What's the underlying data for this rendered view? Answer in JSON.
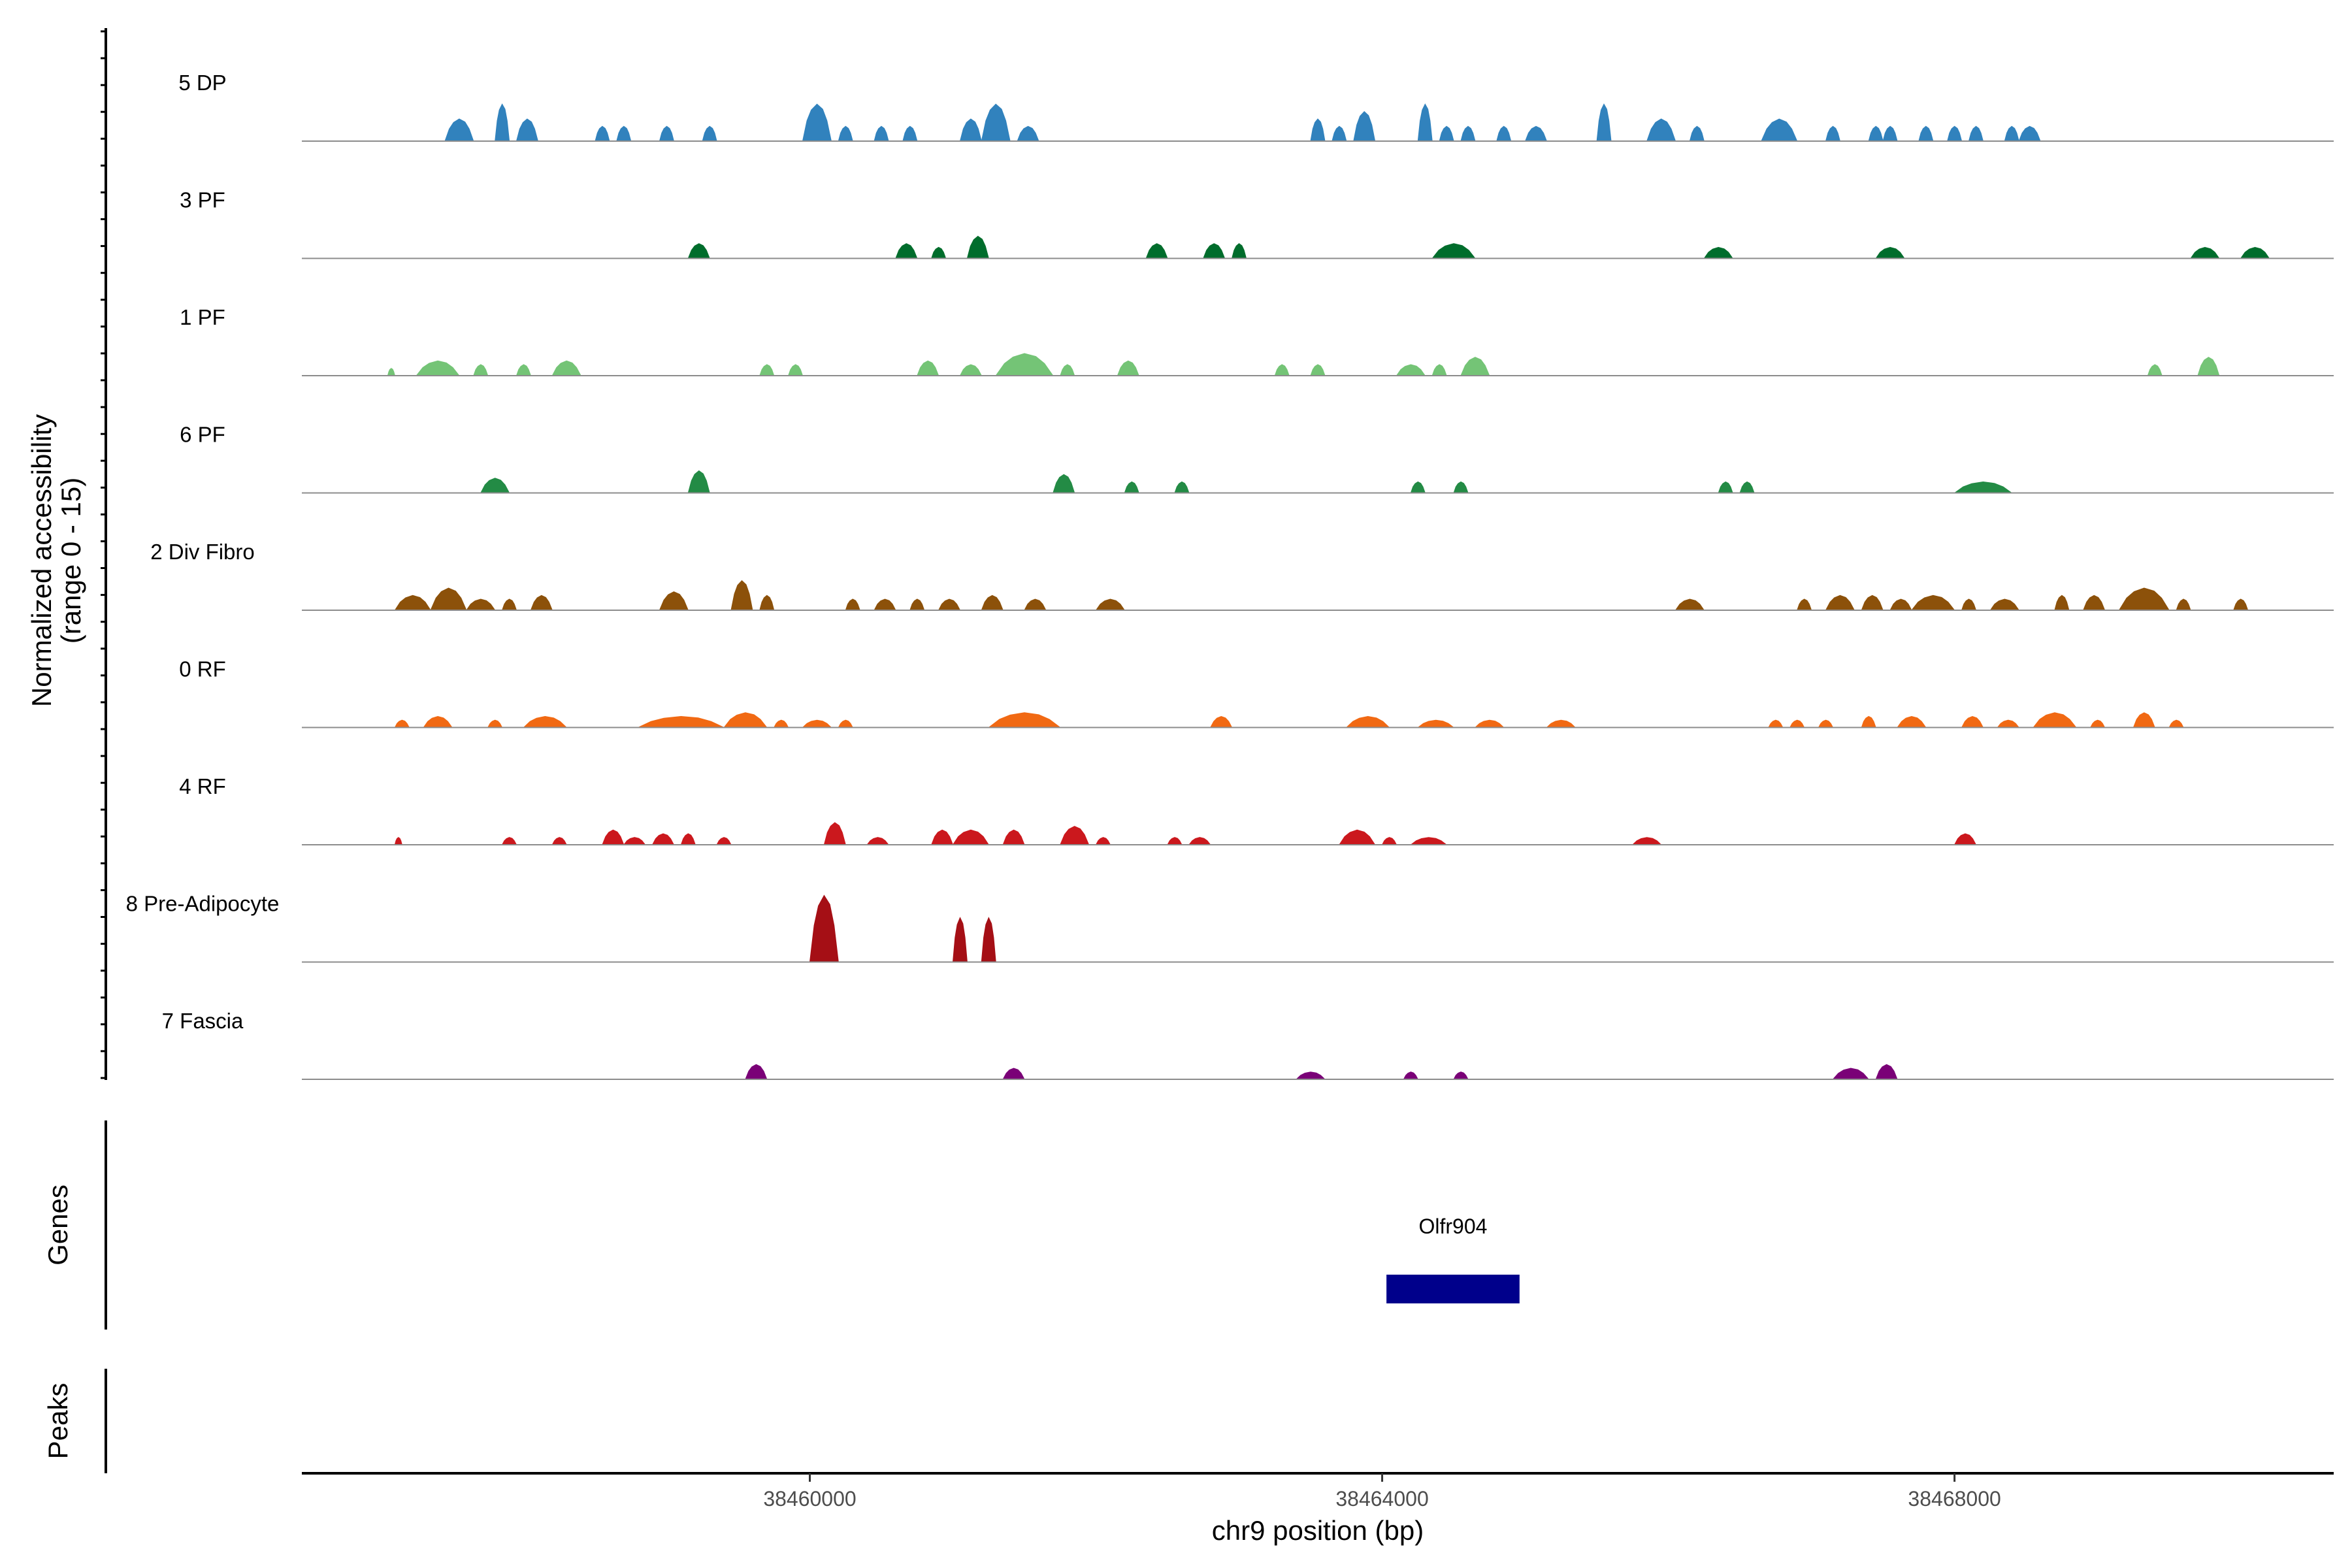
{
  "chart_data": {
    "type": "area",
    "ylabel_line1": "Normalized accessibility",
    "ylabel_line2": "(range 0 - 15)",
    "xlabel": "chr9 position (bp)",
    "xlim": [
      38456450,
      38470650
    ],
    "ylim": [
      0,
      15
    ],
    "x_ticks": [
      38460000,
      38464000,
      38468000
    ],
    "x_tick_labels": [
      "38460000",
      "38464000",
      "38468000"
    ],
    "genes_panel_label": "Genes",
    "peaks_panel_label": "Peaks",
    "genes": [
      {
        "name": "Olfr904",
        "start": 38464030,
        "end": 38464960,
        "color": "#00008B"
      }
    ],
    "peaks": [],
    "series": [
      {
        "name": "5 DP",
        "color": "#3182BD",
        "peaks": [
          [
            38457450,
            38457650,
            3
          ],
          [
            38457800,
            38457900,
            5
          ],
          [
            38457950,
            38458100,
            3
          ],
          [
            38458500,
            38458600,
            2
          ],
          [
            38458650,
            38458750,
            2
          ],
          [
            38458950,
            38459050,
            2
          ],
          [
            38459250,
            38459350,
            2
          ],
          [
            38459950,
            38460150,
            5
          ],
          [
            38460200,
            38460300,
            2
          ],
          [
            38460450,
            38460550,
            2
          ],
          [
            38460650,
            38460750,
            2
          ],
          [
            38461050,
            38461200,
            3
          ],
          [
            38461200,
            38461400,
            5
          ],
          [
            38461450,
            38461600,
            2
          ],
          [
            38463500,
            38463600,
            3
          ],
          [
            38463650,
            38463750,
            2
          ],
          [
            38463800,
            38463950,
            4
          ],
          [
            38464250,
            38464350,
            5
          ],
          [
            38464400,
            38464500,
            2
          ],
          [
            38464550,
            38464650,
            2
          ],
          [
            38464800,
            38464900,
            2
          ],
          [
            38465000,
            38465150,
            2
          ],
          [
            38465500,
            38465600,
            5
          ],
          [
            38465850,
            38466050,
            3
          ],
          [
            38466150,
            38466250,
            2
          ],
          [
            38466650,
            38466900,
            3
          ],
          [
            38467100,
            38467200,
            2
          ],
          [
            38467400,
            38467500,
            2
          ],
          [
            38467500,
            38467600,
            2
          ],
          [
            38467750,
            38467850,
            2
          ],
          [
            38467950,
            38468050,
            2
          ],
          [
            38468100,
            38468200,
            2
          ],
          [
            38468350,
            38468450,
            2
          ],
          [
            38468450,
            38468600,
            2
          ]
        ]
      },
      {
        "name": "3 PF",
        "color": "#006D2C",
        "peaks": [
          [
            38459150,
            38459300,
            2
          ],
          [
            38460600,
            38460750,
            2
          ],
          [
            38460850,
            38460950,
            1.5
          ],
          [
            38461100,
            38461250,
            3
          ],
          [
            38462350,
            38462500,
            2
          ],
          [
            38462750,
            38462900,
            2
          ],
          [
            38462950,
            38463050,
            2
          ],
          [
            38464350,
            38464650,
            2
          ],
          [
            38466250,
            38466450,
            1.5
          ],
          [
            38467450,
            38467650,
            1.5
          ],
          [
            38469650,
            38469850,
            1.5
          ],
          [
            38470000,
            38470200,
            1.5
          ]
        ]
      },
      {
        "name": "1 PF",
        "color": "#74C476",
        "peaks": [
          [
            38457050,
            38457100,
            1
          ],
          [
            38457250,
            38457550,
            2
          ],
          [
            38457650,
            38457750,
            1.5
          ],
          [
            38457950,
            38458050,
            1.5
          ],
          [
            38458200,
            38458400,
            2
          ],
          [
            38459650,
            38459750,
            1.5
          ],
          [
            38459850,
            38459950,
            1.5
          ],
          [
            38460750,
            38460900,
            2
          ],
          [
            38461050,
            38461200,
            1.5
          ],
          [
            38461300,
            38461700,
            3
          ],
          [
            38461750,
            38461850,
            1.5
          ],
          [
            38462150,
            38462300,
            2
          ],
          [
            38463250,
            38463350,
            1.5
          ],
          [
            38463500,
            38463600,
            1.5
          ],
          [
            38464100,
            38464300,
            1.5
          ],
          [
            38464350,
            38464450,
            1.5
          ],
          [
            38464550,
            38464750,
            2.5
          ],
          [
            38469350,
            38469450,
            1.5
          ],
          [
            38469700,
            38469850,
            2.5
          ]
        ]
      },
      {
        "name": "6 PF",
        "color": "#238B45",
        "peaks": [
          [
            38457700,
            38457900,
            2
          ],
          [
            38459150,
            38459300,
            3
          ],
          [
            38461700,
            38461850,
            2.5
          ],
          [
            38462200,
            38462300,
            1.5
          ],
          [
            38462550,
            38462650,
            1.5
          ],
          [
            38464200,
            38464300,
            1.5
          ],
          [
            38464500,
            38464600,
            1.5
          ],
          [
            38466350,
            38466450,
            1.5
          ],
          [
            38466500,
            38466600,
            1.5
          ],
          [
            38468000,
            38468400,
            1.5
          ]
        ]
      },
      {
        "name": "2 Div Fibro",
        "color": "#8C510A",
        "peaks": [
          [
            38457100,
            38457350,
            2
          ],
          [
            38457350,
            38457600,
            3
          ],
          [
            38457600,
            38457800,
            1.5
          ],
          [
            38457850,
            38457950,
            1.5
          ],
          [
            38458050,
            38458200,
            2
          ],
          [
            38458950,
            38459150,
            2.5
          ],
          [
            38459450,
            38459600,
            4
          ],
          [
            38459650,
            38459750,
            2
          ],
          [
            38460250,
            38460350,
            1.5
          ],
          [
            38460450,
            38460600,
            1.5
          ],
          [
            38460700,
            38460800,
            1.5
          ],
          [
            38460900,
            38461050,
            1.5
          ],
          [
            38461200,
            38461350,
            2
          ],
          [
            38461500,
            38461650,
            1.5
          ],
          [
            38462000,
            38462200,
            1.5
          ],
          [
            38466050,
            38466250,
            1.5
          ],
          [
            38466900,
            38467000,
            1.5
          ],
          [
            38467100,
            38467300,
            2
          ],
          [
            38467350,
            38467500,
            2
          ],
          [
            38467550,
            38467700,
            1.5
          ],
          [
            38467700,
            38468000,
            2
          ],
          [
            38468050,
            38468150,
            1.5
          ],
          [
            38468250,
            38468450,
            1.5
          ],
          [
            38468700,
            38468800,
            2
          ],
          [
            38468900,
            38469050,
            2
          ],
          [
            38469150,
            38469500,
            3
          ],
          [
            38469550,
            38469650,
            1.5
          ],
          [
            38469950,
            38470050,
            1.5
          ]
        ]
      },
      {
        "name": "0 RF",
        "color": "#F16913",
        "peaks": [
          [
            38457100,
            38457200,
            1
          ],
          [
            38457300,
            38457500,
            1.5
          ],
          [
            38457750,
            38457850,
            1
          ],
          [
            38458000,
            38458300,
            1.5
          ],
          [
            38458800,
            38459400,
            1.5
          ],
          [
            38459400,
            38459700,
            2
          ],
          [
            38459750,
            38459850,
            1
          ],
          [
            38459950,
            38460150,
            1
          ],
          [
            38460200,
            38460300,
            1
          ],
          [
            38461250,
            38461750,
            2
          ],
          [
            38462800,
            38462950,
            1.5
          ],
          [
            38463750,
            38464050,
            1.5
          ],
          [
            38464250,
            38464500,
            1
          ],
          [
            38464650,
            38464850,
            1
          ],
          [
            38465150,
            38465350,
            1
          ],
          [
            38466700,
            38466800,
            1
          ],
          [
            38466850,
            38466950,
            1
          ],
          [
            38467050,
            38467150,
            1
          ],
          [
            38467350,
            38467450,
            1.5
          ],
          [
            38467600,
            38467800,
            1.5
          ],
          [
            38468050,
            38468200,
            1.5
          ],
          [
            38468300,
            38468450,
            1
          ],
          [
            38468550,
            38468850,
            2
          ],
          [
            38468950,
            38469050,
            1
          ],
          [
            38469250,
            38469400,
            2
          ],
          [
            38469500,
            38469600,
            1
          ]
        ]
      },
      {
        "name": "4 RF",
        "color": "#CB181D",
        "peaks": [
          [
            38457100,
            38457150,
            1
          ],
          [
            38457850,
            38457950,
            1
          ],
          [
            38458200,
            38458300,
            1
          ],
          [
            38458550,
            38458700,
            2
          ],
          [
            38458700,
            38458850,
            1
          ],
          [
            38458900,
            38459050,
            1.5
          ],
          [
            38459100,
            38459200,
            1.5
          ],
          [
            38459350,
            38459450,
            1
          ],
          [
            38460100,
            38460250,
            3
          ],
          [
            38460400,
            38460550,
            1
          ],
          [
            38460850,
            38461000,
            2
          ],
          [
            38461000,
            38461250,
            2
          ],
          [
            38461350,
            38461500,
            2
          ],
          [
            38461750,
            38461950,
            2.5
          ],
          [
            38462000,
            38462100,
            1
          ],
          [
            38462500,
            38462600,
            1
          ],
          [
            38462650,
            38462800,
            1
          ],
          [
            38463700,
            38463950,
            2
          ],
          [
            38464000,
            38464100,
            1
          ],
          [
            38464200,
            38464450,
            1
          ],
          [
            38465750,
            38465950,
            1
          ],
          [
            38468000,
            38468150,
            1.5
          ]
        ]
      },
      {
        "name": "8 Pre-Adipocyte",
        "color": "#A50F15",
        "peaks": [
          [
            38460000,
            38460200,
            9
          ],
          [
            38461000,
            38461100,
            6
          ],
          [
            38461200,
            38461300,
            6
          ]
        ]
      },
      {
        "name": "7 Fascia",
        "color": "#7A0177",
        "peaks": [
          [
            38459550,
            38459700,
            2
          ],
          [
            38461350,
            38461500,
            1.5
          ],
          [
            38463400,
            38463600,
            1
          ],
          [
            38464150,
            38464250,
            1
          ],
          [
            38464500,
            38464600,
            1
          ],
          [
            38467150,
            38467400,
            1.5
          ],
          [
            38467450,
            38467600,
            2
          ]
        ]
      }
    ]
  }
}
